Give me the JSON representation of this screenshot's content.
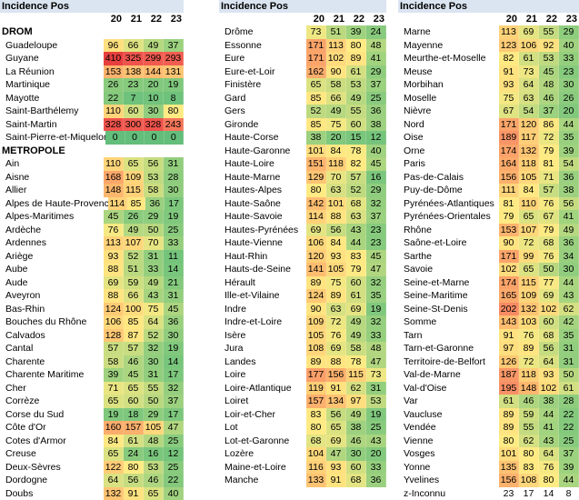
{
  "panels": [
    {
      "title": "Incidence Pos",
      "years": [
        "20",
        "21",
        "22",
        "23"
      ],
      "rows": [
        {
          "type": "section",
          "label": "DROM"
        },
        {
          "label": "Guadeloupe",
          "values": [
            96,
            66,
            49,
            37
          ]
        },
        {
          "label": "Guyane",
          "values": [
            410,
            325,
            299,
            293
          ]
        },
        {
          "label": "La Réunion",
          "values": [
            153,
            138,
            144,
            131
          ]
        },
        {
          "label": "Martinique",
          "values": [
            26,
            23,
            20,
            19
          ]
        },
        {
          "label": "Mayotte",
          "values": [
            22,
            7,
            10,
            8
          ]
        },
        {
          "label": "Saint-Barthélemy",
          "values": [
            110,
            60,
            30,
            80
          ]
        },
        {
          "label": "Saint-Martin",
          "values": [
            328,
            300,
            328,
            243
          ]
        },
        {
          "label": "Saint-Pierre-et-Miquelon",
          "values": [
            0,
            0,
            0,
            0
          ]
        },
        {
          "type": "section",
          "label": "METROPOLE"
        },
        {
          "label": "Ain",
          "values": [
            110,
            65,
            56,
            31
          ]
        },
        {
          "label": "Aisne",
          "values": [
            168,
            109,
            53,
            28
          ]
        },
        {
          "label": "Allier",
          "values": [
            148,
            115,
            58,
            30
          ]
        },
        {
          "label": "Alpes de Haute-Provence",
          "values": [
            114,
            85,
            36,
            17
          ]
        },
        {
          "label": "Alpes-Maritimes",
          "values": [
            45,
            26,
            29,
            19
          ]
        },
        {
          "label": "Ardèche",
          "values": [
            76,
            49,
            50,
            25
          ]
        },
        {
          "label": "Ardennes",
          "values": [
            113,
            107,
            70,
            33
          ]
        },
        {
          "label": "Ariège",
          "values": [
            93,
            52,
            31,
            11
          ]
        },
        {
          "label": "Aube",
          "values": [
            88,
            51,
            33,
            14
          ]
        },
        {
          "label": "Aude",
          "values": [
            69,
            59,
            49,
            21
          ]
        },
        {
          "label": "Aveyron",
          "values": [
            88,
            66,
            43,
            31
          ]
        },
        {
          "label": "Bas-Rhin",
          "values": [
            124,
            100,
            75,
            45
          ]
        },
        {
          "label": "Bouches du Rhône",
          "values": [
            106,
            85,
            64,
            36
          ]
        },
        {
          "label": "Calvados",
          "values": [
            128,
            87,
            52,
            30
          ]
        },
        {
          "label": "Cantal",
          "values": [
            57,
            57,
            32,
            19
          ]
        },
        {
          "label": "Charente",
          "values": [
            58,
            46,
            30,
            14
          ]
        },
        {
          "label": "Charente Maritime",
          "values": [
            39,
            45,
            31,
            17
          ]
        },
        {
          "label": "Cher",
          "values": [
            71,
            65,
            55,
            32
          ]
        },
        {
          "label": "Corrèze",
          "values": [
            65,
            60,
            50,
            37
          ]
        },
        {
          "label": "Corse du Sud",
          "values": [
            19,
            18,
            29,
            17
          ]
        },
        {
          "label": "Côte d'Or",
          "values": [
            160,
            157,
            105,
            47
          ]
        },
        {
          "label": "Cotes d'Armor",
          "values": [
            84,
            61,
            48,
            25
          ]
        },
        {
          "label": "Creuse",
          "values": [
            65,
            24,
            16,
            12
          ]
        },
        {
          "label": "Deux-Sèvres",
          "values": [
            122,
            80,
            53,
            25
          ]
        },
        {
          "label": "Dordogne",
          "values": [
            64,
            56,
            46,
            22
          ]
        },
        {
          "label": "Doubs",
          "values": [
            132,
            91,
            65,
            40
          ]
        }
      ]
    },
    {
      "title": "Incidence Pos",
      "years": [
        "20",
        "21",
        "22",
        "23"
      ],
      "rows": [
        {
          "label": "Drôme",
          "values": [
            73,
            51,
            39,
            24
          ]
        },
        {
          "label": "Essonne",
          "values": [
            171,
            113,
            80,
            48
          ]
        },
        {
          "label": "Eure",
          "values": [
            171,
            102,
            89,
            41
          ]
        },
        {
          "label": "Eure-et-Loir",
          "values": [
            162,
            90,
            61,
            29
          ]
        },
        {
          "label": "Finistère",
          "values": [
            65,
            58,
            53,
            37
          ]
        },
        {
          "label": "Gard",
          "values": [
            85,
            66,
            49,
            25
          ]
        },
        {
          "label": "Gers",
          "values": [
            52,
            49,
            55,
            36
          ]
        },
        {
          "label": "Gironde",
          "values": [
            85,
            75,
            60,
            38
          ]
        },
        {
          "label": "Haute-Corse",
          "values": [
            38,
            20,
            15,
            12
          ]
        },
        {
          "label": "Haute-Garonne",
          "values": [
            101,
            84,
            78,
            40
          ]
        },
        {
          "label": "Haute-Loire",
          "values": [
            151,
            118,
            82,
            45
          ]
        },
        {
          "label": "Haute-Marne",
          "values": [
            129,
            70,
            57,
            16
          ]
        },
        {
          "label": "Hautes-Alpes",
          "values": [
            80,
            63,
            52,
            29
          ]
        },
        {
          "label": "Haute-Saône",
          "values": [
            142,
            101,
            68,
            32
          ]
        },
        {
          "label": "Haute-Savoie",
          "values": [
            114,
            88,
            63,
            37
          ]
        },
        {
          "label": "Hautes-Pyrénées",
          "values": [
            69,
            56,
            43,
            23
          ]
        },
        {
          "label": "Haute-Vienne",
          "values": [
            106,
            84,
            44,
            23
          ]
        },
        {
          "label": "Haut-Rhin",
          "values": [
            120,
            93,
            83,
            45
          ]
        },
        {
          "label": "Hauts-de-Seine",
          "values": [
            141,
            105,
            79,
            47
          ]
        },
        {
          "label": "Hérault",
          "values": [
            89,
            75,
            60,
            32
          ]
        },
        {
          "label": "Ille-et-Vilaine",
          "values": [
            124,
            89,
            61,
            35
          ]
        },
        {
          "label": "Indre",
          "values": [
            90,
            63,
            69,
            19
          ]
        },
        {
          "label": "Indre-et-Loire",
          "values": [
            109,
            72,
            49,
            32
          ]
        },
        {
          "label": "Isère",
          "values": [
            105,
            76,
            49,
            33
          ]
        },
        {
          "label": "Jura",
          "values": [
            108,
            69,
            58,
            48
          ]
        },
        {
          "label": "Landes",
          "values": [
            89,
            88,
            78,
            47
          ]
        },
        {
          "label": "Loire",
          "values": [
            177,
            156,
            115,
            73
          ]
        },
        {
          "label": "Loire-Atlantique",
          "values": [
            119,
            91,
            62,
            31
          ]
        },
        {
          "label": "Loiret",
          "values": [
            157,
            134,
            97,
            53
          ]
        },
        {
          "label": "Loir-et-Cher",
          "values": [
            83,
            56,
            49,
            19
          ]
        },
        {
          "label": "Lot",
          "values": [
            80,
            65,
            38,
            25
          ]
        },
        {
          "label": "Lot-et-Garonne",
          "values": [
            68,
            69,
            46,
            43
          ]
        },
        {
          "label": "Lozère",
          "values": [
            104,
            47,
            30,
            20
          ]
        },
        {
          "label": "Maine-et-Loire",
          "values": [
            116,
            93,
            60,
            33
          ]
        },
        {
          "label": "Manche",
          "values": [
            133,
            91,
            68,
            36
          ]
        }
      ]
    },
    {
      "title": "Incidence Pos",
      "years": [
        "20",
        "21",
        "22",
        "23"
      ],
      "rows": [
        {
          "label": "Marne",
          "values": [
            113,
            69,
            55,
            29
          ]
        },
        {
          "label": "Mayenne",
          "values": [
            123,
            106,
            92,
            40
          ]
        },
        {
          "label": "Meurthe-et-Moselle",
          "values": [
            82,
            61,
            53,
            33
          ]
        },
        {
          "label": "Meuse",
          "values": [
            91,
            73,
            45,
            23
          ]
        },
        {
          "label": "Morbihan",
          "values": [
            93,
            64,
            48,
            30
          ]
        },
        {
          "label": "Moselle",
          "values": [
            75,
            63,
            46,
            26
          ]
        },
        {
          "label": "Nièvre",
          "values": [
            67,
            54,
            37,
            20
          ]
        },
        {
          "label": "Nord",
          "values": [
            171,
            120,
            86,
            44
          ]
        },
        {
          "label": "Oise",
          "values": [
            189,
            117,
            72,
            35
          ]
        },
        {
          "label": "Orne",
          "values": [
            174,
            132,
            79,
            39
          ]
        },
        {
          "label": "Paris",
          "values": [
            164,
            118,
            81,
            54
          ]
        },
        {
          "label": "Pas-de-Calais",
          "values": [
            156,
            105,
            71,
            36
          ]
        },
        {
          "label": "Puy-de-Dôme",
          "values": [
            111,
            84,
            57,
            38
          ]
        },
        {
          "label": "Pyrénées-Atlantiques",
          "values": [
            81,
            110,
            76,
            56
          ]
        },
        {
          "label": "Pyrénées-Orientales",
          "values": [
            79,
            65,
            67,
            41
          ]
        },
        {
          "label": "Rhône",
          "values": [
            153,
            107,
            79,
            49
          ]
        },
        {
          "label": "Saône-et-Loire",
          "values": [
            90,
            72,
            68,
            36
          ]
        },
        {
          "label": "Sarthe",
          "values": [
            171,
            99,
            76,
            34
          ]
        },
        {
          "label": "Savoie",
          "values": [
            102,
            65,
            50,
            30
          ]
        },
        {
          "label": "Seine-et-Marne",
          "values": [
            174,
            115,
            77,
            44
          ]
        },
        {
          "label": "Seine-Maritime",
          "values": [
            165,
            109,
            69,
            43
          ]
        },
        {
          "label": "Seine-St-Denis",
          "values": [
            202,
            132,
            102,
            62
          ]
        },
        {
          "label": "Somme",
          "values": [
            143,
            103,
            60,
            42
          ]
        },
        {
          "label": "Tarn",
          "values": [
            91,
            76,
            68,
            35
          ]
        },
        {
          "label": "Tarn-et-Garonne",
          "values": [
            97,
            89,
            56,
            31
          ]
        },
        {
          "label": "Territoire-de-Belfort",
          "values": [
            126,
            72,
            64,
            31
          ]
        },
        {
          "label": "Val-de-Marne",
          "values": [
            187,
            118,
            93,
            50
          ]
        },
        {
          "label": "Val-d'Oise",
          "values": [
            195,
            148,
            102,
            61
          ]
        },
        {
          "label": "Var",
          "values": [
            61,
            46,
            38,
            28
          ]
        },
        {
          "label": "Vaucluse",
          "values": [
            89,
            59,
            44,
            22
          ]
        },
        {
          "label": "Vendée",
          "values": [
            89,
            55,
            41,
            22
          ]
        },
        {
          "label": "Vienne",
          "values": [
            80,
            62,
            43,
            25
          ]
        },
        {
          "label": "Vosges",
          "values": [
            101,
            80,
            64,
            37
          ]
        },
        {
          "label": "Yonne",
          "values": [
            135,
            83,
            76,
            39
          ]
        },
        {
          "label": "Yvelines",
          "values": [
            156,
            108,
            80,
            44
          ]
        },
        {
          "label": "z-Inconnu",
          "values": [
            23,
            17,
            14,
            8
          ],
          "uncolored": true
        }
      ]
    }
  ]
}
